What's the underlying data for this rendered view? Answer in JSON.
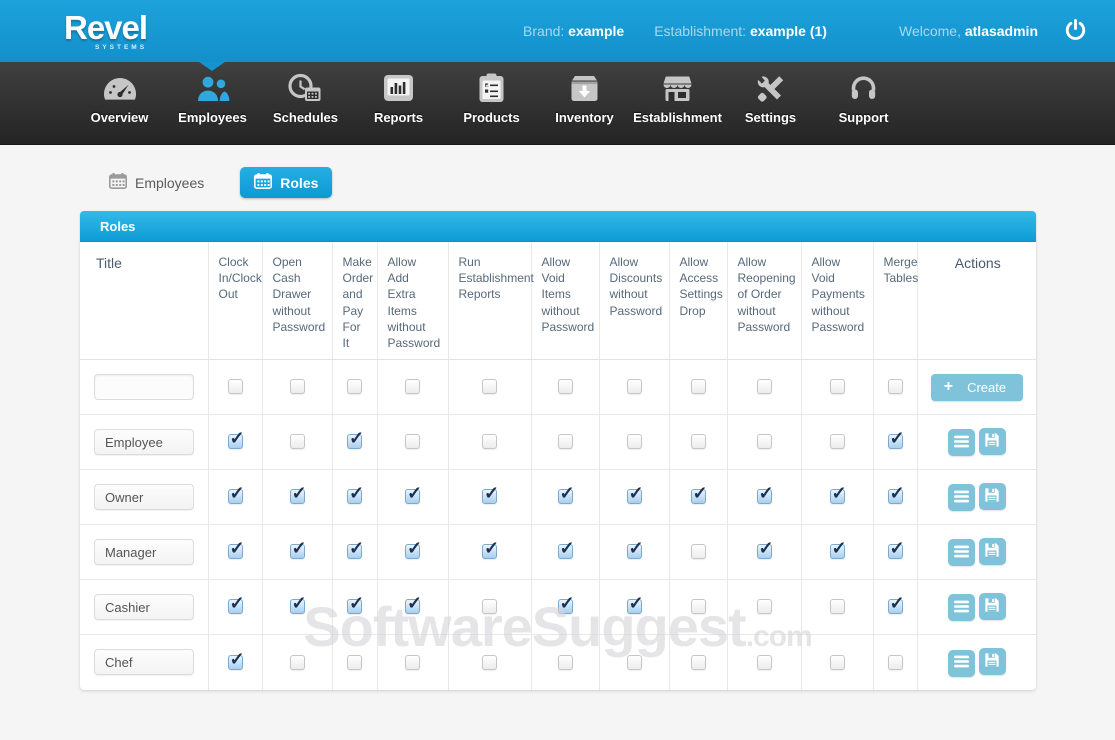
{
  "header": {
    "logo_title": "Revel",
    "logo_subtitle": "SYSTEMS",
    "brand_label": "Brand:",
    "brand_value": "example",
    "establishment_label": "Establishment:",
    "establishment_value": "example (1)",
    "welcome_label": "Welcome,",
    "welcome_value": "atlasadmin"
  },
  "nav": {
    "active_item": "Employees",
    "items": [
      {
        "label": "Overview",
        "icon": "gauge-icon",
        "active": false
      },
      {
        "label": "Employees",
        "icon": "people-icon",
        "active": true
      },
      {
        "label": "Schedules",
        "icon": "clock-calendar-icon",
        "active": false
      },
      {
        "label": "Reports",
        "icon": "bar-chart-icon",
        "active": false
      },
      {
        "label": "Products",
        "icon": "clipboard-icon",
        "active": false
      },
      {
        "label": "Inventory",
        "icon": "box-arrow-icon",
        "active": false
      },
      {
        "label": "Establishment",
        "icon": "storefront-icon",
        "active": false
      },
      {
        "label": "Settings",
        "icon": "tools-icon",
        "active": false
      },
      {
        "label": "Support",
        "icon": "headset-icon",
        "active": false
      }
    ]
  },
  "tabs": [
    {
      "label": "Employees",
      "icon": "calendar-grid-icon",
      "active": false
    },
    {
      "label": "Roles",
      "icon": "calendar-grid-icon",
      "active": true
    }
  ],
  "panel": {
    "title": "Roles"
  },
  "table": {
    "columns": [
      "Title",
      "Clock In/Clock Out",
      "Open Cash Drawer without Password",
      "Make Order and Pay For It",
      "Allow Add Extra Items without Password",
      "Run Establishment Reports",
      "Allow Void Items without Password",
      "Allow Discounts without Password",
      "Allow Access Settings Drop",
      "Allow Reopening of Order without Password",
      "Allow Void Payments without Password",
      "Merge Tables",
      "Actions"
    ],
    "create_button_label": "Create",
    "new_role_value": "",
    "rows": [
      {
        "type": "new",
        "title": "",
        "checks": [
          false,
          false,
          false,
          false,
          false,
          false,
          false,
          false,
          false,
          false,
          false
        ]
      },
      {
        "type": "role",
        "title": "Employee",
        "checks": [
          true,
          false,
          true,
          false,
          false,
          false,
          false,
          false,
          false,
          false,
          true
        ]
      },
      {
        "type": "role",
        "title": "Owner",
        "checks": [
          true,
          true,
          true,
          true,
          true,
          true,
          true,
          true,
          true,
          true,
          true
        ]
      },
      {
        "type": "role",
        "title": "Manager",
        "checks": [
          true,
          true,
          true,
          true,
          true,
          true,
          true,
          false,
          true,
          true,
          true
        ]
      },
      {
        "type": "role",
        "title": "Cashier",
        "checks": [
          true,
          true,
          true,
          true,
          false,
          true,
          true,
          false,
          false,
          false,
          true
        ]
      },
      {
        "type": "role",
        "title": "Chef",
        "checks": [
          true,
          false,
          false,
          false,
          false,
          false,
          false,
          false,
          false,
          false,
          false
        ]
      }
    ]
  },
  "watermark": {
    "text": "SoftwareSuggest",
    "suffix": ".com"
  },
  "colors": {
    "header_blue": "#1798d4",
    "accent_blue": "#18a3db",
    "nav_dark": "#2b2b2b",
    "button_blue": "#7fc3db",
    "checked_fill": "#aed3ef",
    "check_mark_navy": "#1d3050",
    "table_header_text": "#57697b"
  }
}
